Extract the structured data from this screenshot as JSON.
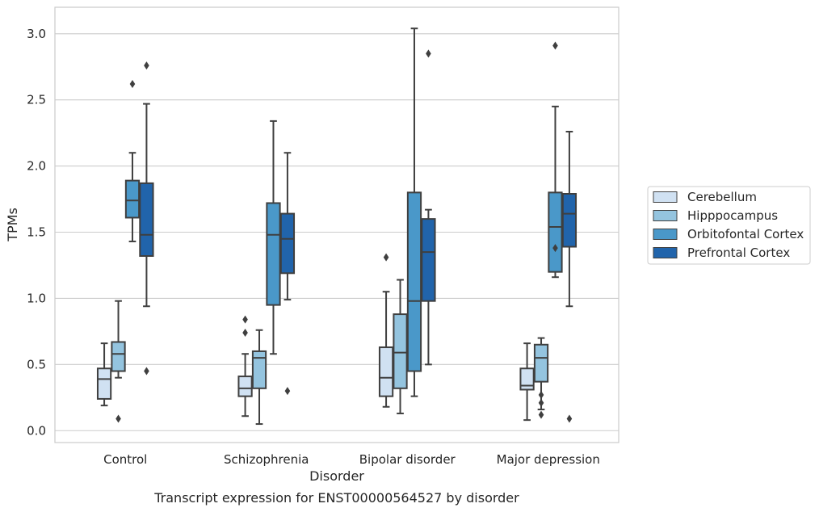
{
  "chart_data": {
    "type": "box",
    "title": "",
    "caption": "Transcript expression for ENST00000564527 by disorder",
    "xlabel": "Disorder",
    "ylabel": "TPMs",
    "ylim": [
      -0.09,
      3.2
    ],
    "yticks": [
      "0.0",
      "0.5",
      "1.0",
      "1.5",
      "2.0",
      "2.5",
      "3.0"
    ],
    "grid": true,
    "legend_position": "right",
    "categories": [
      "Control",
      "Schizophrenia",
      "Bipolar disorder",
      "Major depression"
    ],
    "series": [
      {
        "name": "Cerebellum",
        "color": "#d0e1f2",
        "boxes": [
          {
            "whislo": 0.19,
            "q1": 0.24,
            "med": 0.39,
            "q3": 0.47,
            "whishi": 0.66,
            "fliers": []
          },
          {
            "whislo": 0.11,
            "q1": 0.26,
            "med": 0.32,
            "q3": 0.41,
            "whishi": 0.58,
            "fliers": [
              0.74,
              0.84
            ]
          },
          {
            "whislo": 0.18,
            "q1": 0.26,
            "med": 0.4,
            "q3": 0.63,
            "whishi": 1.05,
            "fliers": [
              1.31
            ]
          },
          {
            "whislo": 0.08,
            "q1": 0.31,
            "med": 0.34,
            "q3": 0.47,
            "whishi": 0.66,
            "fliers": []
          }
        ]
      },
      {
        "name": "Hipppocampus",
        "color": "#94c4df",
        "boxes": [
          {
            "whislo": 0.4,
            "q1": 0.45,
            "med": 0.58,
            "q3": 0.67,
            "whishi": 0.98,
            "fliers": [
              0.09
            ]
          },
          {
            "whislo": 0.05,
            "q1": 0.32,
            "med": 0.55,
            "q3": 0.6,
            "whishi": 0.76,
            "fliers": []
          },
          {
            "whislo": 0.13,
            "q1": 0.32,
            "med": 0.59,
            "q3": 0.88,
            "whishi": 1.14,
            "fliers": []
          },
          {
            "whislo": 0.16,
            "q1": 0.37,
            "med": 0.55,
            "q3": 0.65,
            "whishi": 0.7,
            "fliers": [
              0.12,
              0.21,
              0.27
            ]
          }
        ]
      },
      {
        "name": "Orbitofontal Cortex",
        "color": "#4a98c9",
        "boxes": [
          {
            "whislo": 1.43,
            "q1": 1.61,
            "med": 1.74,
            "q3": 1.89,
            "whishi": 2.1,
            "fliers": [
              2.62
            ]
          },
          {
            "whislo": 0.58,
            "q1": 0.95,
            "med": 1.48,
            "q3": 1.72,
            "whishi": 2.34,
            "fliers": []
          },
          {
            "whislo": 0.26,
            "q1": 0.45,
            "med": 0.98,
            "q3": 1.8,
            "whishi": 3.04,
            "fliers": []
          },
          {
            "whislo": 1.16,
            "q1": 1.2,
            "med": 1.54,
            "q3": 1.8,
            "whishi": 2.45,
            "fliers": [
              1.38,
              2.91
            ]
          }
        ]
      },
      {
        "name": "Prefrontal Cortex",
        "color": "#2164ab",
        "boxes": [
          {
            "whislo": 0.94,
            "q1": 1.32,
            "med": 1.48,
            "q3": 1.87,
            "whishi": 2.47,
            "fliers": [
              0.45,
              2.76
            ]
          },
          {
            "whislo": 0.99,
            "q1": 1.19,
            "med": 1.45,
            "q3": 1.64,
            "whishi": 2.1,
            "fliers": [
              0.3
            ]
          },
          {
            "whislo": 0.5,
            "q1": 0.98,
            "med": 1.35,
            "q3": 1.6,
            "whishi": 1.67,
            "fliers": [
              2.85
            ]
          },
          {
            "whislo": 0.94,
            "q1": 1.39,
            "med": 1.64,
            "q3": 1.79,
            "whishi": 2.26,
            "fliers": [
              0.09
            ]
          }
        ]
      }
    ]
  }
}
